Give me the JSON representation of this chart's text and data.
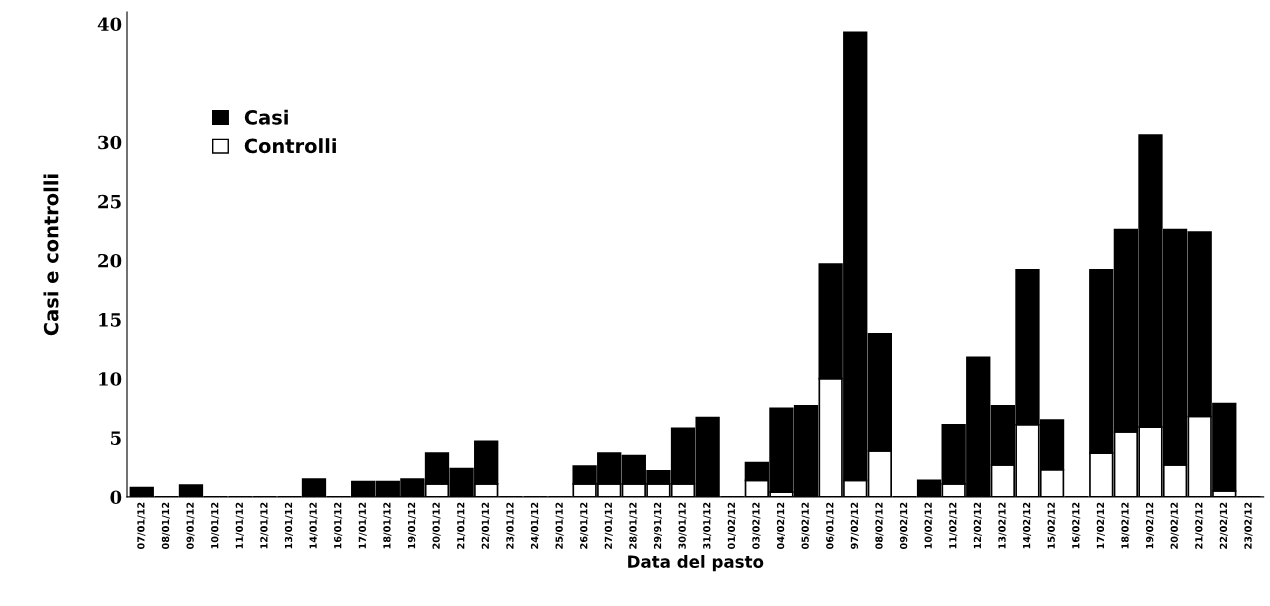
{
  "chart_data": {
    "type": "bar",
    "stacked": true,
    "xlabel": "Data del pasto",
    "ylabel": "Casi e controlli",
    "categories": [
      "07/01/12",
      "08/01/12",
      "09/01/12",
      "10/01/12",
      "11/01/12",
      "12/01/12",
      "13/01/12",
      "14/01/12",
      "16/01/12",
      "17/01/12",
      "18/01/12",
      "19/01/12",
      "20/01/12",
      "21/01/12",
      "22/01/12",
      "23/01/12",
      "24/01/12",
      "25/01/12",
      "26/01/12",
      "27/01/12",
      "28/01/12",
      "29/91/12",
      "30/01/12",
      "31/01/12",
      "01/02/12",
      "03/02/12",
      "04/02/12",
      "05/02/12",
      "06/01/12",
      "97/02/12",
      "08/02/12",
      "09/02/12",
      "10/02/12",
      "11/02/12",
      "12/02/12",
      "13/02/12",
      "14/02/12",
      "15/02/12",
      "16/02/12",
      "17/02/12",
      "18/02/12",
      "19/02/12",
      "20/02/12",
      "21/02/12",
      "22/02/12",
      "23/02/12"
    ],
    "series": [
      {
        "name": "Controlli",
        "color": "#ffffff",
        "values": [
          0,
          0,
          0,
          0,
          0,
          0,
          0,
          0,
          0,
          0,
          0,
          0,
          1.1,
          0,
          1.1,
          0,
          0,
          0,
          1.1,
          1.1,
          1.1,
          1.1,
          1.1,
          0,
          0,
          1.4,
          0.4,
          0,
          10.0,
          1.4,
          3.9,
          0,
          0,
          1.1,
          0,
          2.7,
          6.1,
          2.3,
          0,
          3.7,
          5.5,
          5.9,
          2.7,
          6.8,
          0.5,
          0
        ]
      },
      {
        "name": "Casi",
        "color": "#000000",
        "values": [
          0.8,
          0,
          1.0,
          0,
          0,
          0,
          0,
          1.5,
          0,
          1.3,
          1.3,
          1.5,
          2.6,
          2.4,
          3.6,
          0,
          0,
          0,
          1.5,
          2.6,
          2.4,
          1.1,
          4.7,
          6.7,
          0,
          1.5,
          7.1,
          7.7,
          9.7,
          37.9,
          9.9,
          0,
          1.4,
          5.0,
          11.8,
          5.0,
          13.1,
          4.2,
          0,
          15.5,
          17.1,
          24.7,
          19.9,
          15.6,
          7.4,
          0
        ]
      }
    ],
    "ylim": [
      0,
      41
    ],
    "yticks": [
      0,
      5,
      10,
      15,
      20,
      25,
      30,
      40
    ],
    "legend": "left",
    "grid": false
  }
}
